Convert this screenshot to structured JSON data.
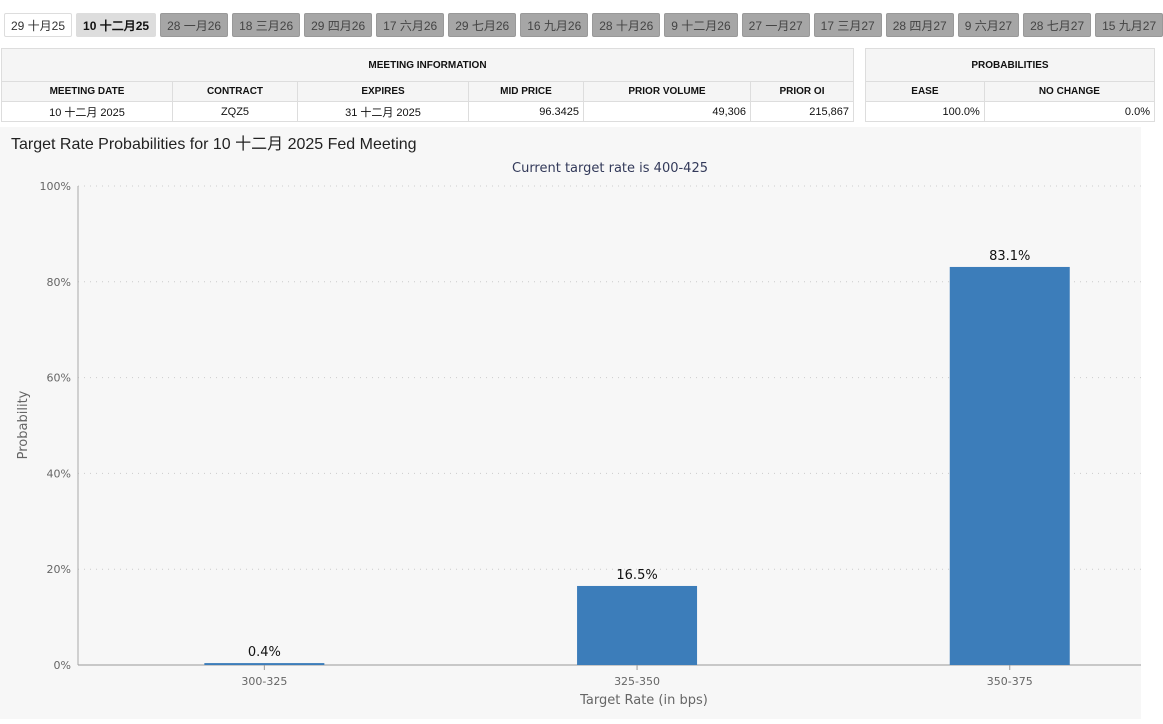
{
  "tabs": [
    "29 十月25",
    "10 十二月25",
    "28 一月26",
    "18 三月26",
    "29 四月26",
    "17 六月26",
    "29 七月26",
    "16 九月26",
    "28 十月26",
    "9 十二月26",
    "27 一月27",
    "17 三月27",
    "28 四月27",
    "9 六月27",
    "28 七月27",
    "15 九月27"
  ],
  "active_tab": 1,
  "meeting_info": {
    "title": "MEETING INFORMATION",
    "headers": [
      "MEETING DATE",
      "CONTRACT",
      "EXPIRES",
      "MID PRICE",
      "PRIOR VOLUME",
      "PRIOR OI"
    ],
    "row": [
      "10 十二月 2025",
      "ZQZ5",
      "31 十二月 2025",
      "96.3425",
      "49,306",
      "215,867"
    ]
  },
  "probabilities": {
    "title": "PROBABILITIES",
    "headers": [
      "EASE",
      "NO CHANGE"
    ],
    "row": [
      "100.0%",
      "0.0%"
    ]
  },
  "chart_data": {
    "type": "bar",
    "title": "Target Rate Probabilities for 10 十二月 2025 Fed Meeting",
    "subtitle": "Current target rate is 400-425",
    "xlabel": "Target Rate (in bps)",
    "ylabel": "Probability",
    "categories": [
      "300-325",
      "325-350",
      "350-375"
    ],
    "values": [
      0.4,
      16.5,
      83.1
    ],
    "data_labels": [
      "0.4%",
      "16.5%",
      "83.1%"
    ],
    "ylim": [
      0,
      100
    ],
    "yticks": [
      "0%",
      "20%",
      "40%",
      "60%",
      "80%",
      "100%"
    ],
    "grid": true,
    "bar_color": "#3c7dba"
  }
}
